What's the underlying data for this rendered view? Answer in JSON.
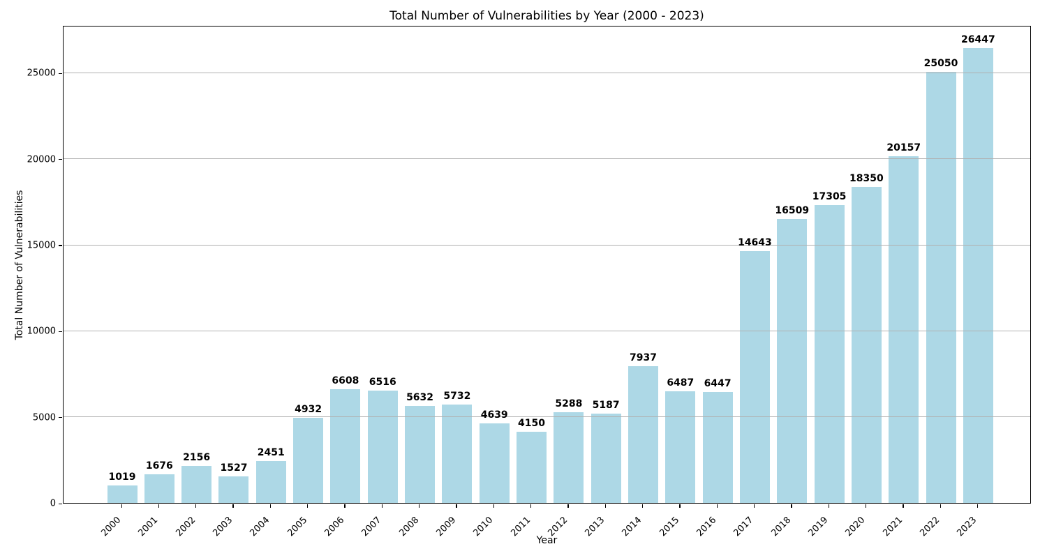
{
  "chart_data": {
    "type": "bar",
    "title": "Total Number of Vulnerabilities by Year (2000 - 2023)",
    "xlabel": "Year",
    "ylabel": "Total Number of Vulnerabilities",
    "categories": [
      "2000",
      "2001",
      "2002",
      "2003",
      "2004",
      "2005",
      "2006",
      "2007",
      "2008",
      "2009",
      "2010",
      "2011",
      "2012",
      "2013",
      "2014",
      "2015",
      "2016",
      "2017",
      "2018",
      "2019",
      "2020",
      "2021",
      "2022",
      "2023"
    ],
    "values": [
      1019,
      1676,
      2156,
      1527,
      2451,
      4932,
      6608,
      6516,
      5632,
      5732,
      4639,
      4150,
      5288,
      5187,
      7937,
      6487,
      6447,
      14643,
      16509,
      17305,
      18350,
      20157,
      25050,
      26447
    ],
    "value_labels_shown": true,
    "y_ticks": [
      0,
      5000,
      10000,
      15000,
      20000,
      25000
    ],
    "ylim": [
      0,
      27770
    ],
    "bar_color": "#ADD8E6",
    "grid_color": "#b0b0b0",
    "axis_color": "#000000",
    "grid": "horizontal-over-bars",
    "legend": "none"
  }
}
